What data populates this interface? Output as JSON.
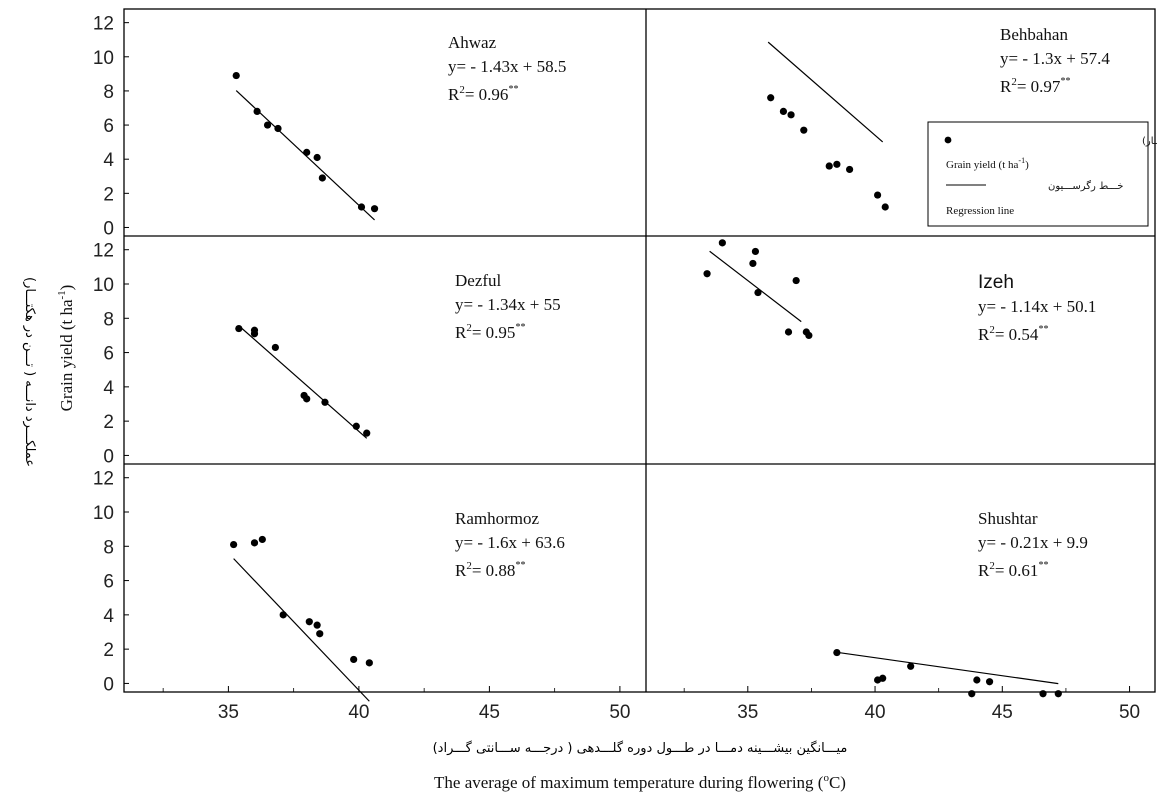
{
  "chart_data": {
    "type": "scatter",
    "xlabel_fa": "میـــانگین بیشـــینه دمـــا در طـــول دوره گلـــدهی ( درجـــه ســـانتی گـــراد)",
    "xlabel_en": "The average of maximum temperature during flowering (",
    "xlabel_en_sup": "o",
    "xlabel_en_end": "C)",
    "ylabel_fa": "عملکـــرد دانـــه ( تـــن در هکتـــار)",
    "ylabel_en": "Grain yield (t ha",
    "ylabel_en_sup": "-1",
    "ylabel_en_end": ")",
    "ylim": [
      -0.5,
      12.8
    ],
    "yticks": [
      "0",
      "2",
      "4",
      "6",
      "8",
      "10",
      "12"
    ],
    "xlim": [
      31,
      51
    ],
    "xticks": [
      "35",
      "40",
      "45",
      "50"
    ],
    "legend": {
      "placement": "top-right of Behbahan panel",
      "point_fa": "عملکـــرد دانـــه ( تـــن در هکتـــار)",
      "point_en": "Grain yield (t ha",
      "point_en_sup": "-1",
      "point_en_end": ")",
      "line_fa": "خـــط رگرســـیون",
      "line_en": "Regression line"
    },
    "panels": [
      {
        "name": "Ahwaz",
        "equation": "y= - 1.43x + 58.5",
        "r2_value": "= 0.96",
        "r2_sig": "**",
        "slope": -1.43,
        "intercept": 58.5,
        "line_x": [
          35.3,
          40.6
        ],
        "points": [
          [
            35.3,
            8.9
          ],
          [
            36.1,
            6.8
          ],
          [
            36.5,
            6.0
          ],
          [
            36.9,
            5.8
          ],
          [
            38.0,
            4.4
          ],
          [
            38.4,
            4.1
          ],
          [
            38.6,
            2.9
          ],
          [
            40.1,
            1.2
          ],
          [
            40.6,
            1.1
          ]
        ]
      },
      {
        "name": "Behbahan",
        "equation": "y= - 1.3x + 57.4",
        "r2_value": "= 0.97",
        "r2_sig": "**",
        "slope": -1.3,
        "intercept": 57.4,
        "line_x": [
          35.8,
          40.3
        ],
        "points": [
          [
            35.9,
            7.6
          ],
          [
            36.4,
            6.8
          ],
          [
            36.7,
            6.6
          ],
          [
            37.2,
            5.7
          ],
          [
            38.2,
            3.6
          ],
          [
            38.5,
            3.7
          ],
          [
            39.0,
            3.4
          ],
          [
            40.1,
            1.9
          ],
          [
            40.4,
            1.2
          ]
        ]
      },
      {
        "name": "Dezful",
        "equation": "y= - 1.34x + 55",
        "r2_value": "= 0.95",
        "r2_sig": "**",
        "slope": -1.34,
        "intercept": 55,
        "line_x": [
          35.4,
          40.3
        ],
        "points": [
          [
            35.4,
            7.4
          ],
          [
            36.0,
            7.3
          ],
          [
            36.0,
            7.1
          ],
          [
            36.8,
            6.3
          ],
          [
            37.9,
            3.5
          ],
          [
            38.0,
            3.3
          ],
          [
            38.7,
            3.1
          ],
          [
            39.9,
            1.7
          ],
          [
            40.3,
            1.3
          ]
        ]
      },
      {
        "name": "Izeh",
        "equation": "y= - 1.14x + 50.1",
        "r2_value": "= 0.54",
        "r2_sig": "**",
        "slope": -1.14,
        "intercept": 50.1,
        "line_x": [
          33.5,
          37.1
        ],
        "points": [
          [
            33.4,
            10.6
          ],
          [
            34.0,
            12.4
          ],
          [
            35.2,
            11.2
          ],
          [
            35.3,
            11.9
          ],
          [
            35.4,
            9.5
          ],
          [
            36.6,
            7.2
          ],
          [
            36.9,
            10.2
          ],
          [
            37.3,
            7.2
          ],
          [
            37.4,
            7.0
          ]
        ]
      },
      {
        "name": "Ramhormoz",
        "equation": "y= - 1.6x + 63.6",
        "r2_value": "= 0.88",
        "r2_sig": "**",
        "slope": -1.6,
        "intercept": 63.6,
        "line_x": [
          35.2,
          40.4
        ],
        "points": [
          [
            35.2,
            8.1
          ],
          [
            36.0,
            8.2
          ],
          [
            36.3,
            8.4
          ],
          [
            37.1,
            4.0
          ],
          [
            38.1,
            3.6
          ],
          [
            38.4,
            3.4
          ],
          [
            38.5,
            2.9
          ],
          [
            39.8,
            1.4
          ],
          [
            40.4,
            1.2
          ]
        ]
      },
      {
        "name": "Shushtar",
        "equation": "y= - 0.21x + 9.9",
        "r2_value": "= 0.61",
        "r2_sig": "**",
        "slope": -0.21,
        "intercept": 9.9,
        "line_x": [
          38.5,
          47.2
        ],
        "points": [
          [
            38.5,
            1.8
          ],
          [
            40.1,
            0.2
          ],
          [
            40.3,
            0.3
          ],
          [
            41.4,
            1.0
          ],
          [
            43.8,
            -0.6
          ],
          [
            44.0,
            0.2
          ],
          [
            44.5,
            0.1
          ],
          [
            46.6,
            -0.6
          ],
          [
            47.2,
            -0.6
          ]
        ]
      }
    ]
  }
}
